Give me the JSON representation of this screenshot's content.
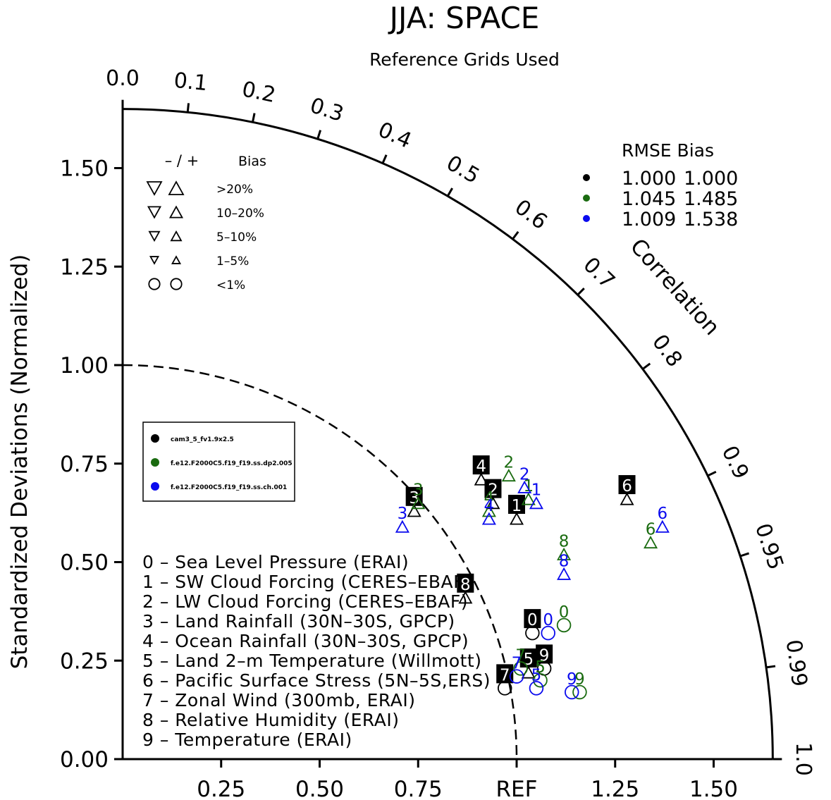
{
  "title": "JJA: SPACE",
  "subtitle": "Reference Grids Used",
  "colors": {
    "black": "#000000",
    "green": "#1a6b10",
    "blue": "#0a0aee"
  },
  "chart_data": {
    "type": "taylor",
    "ylabel": "Standardized Deviations (Normalized)",
    "y_ticks": [
      "0.00",
      "0.25",
      "0.50",
      "0.75",
      "1.00",
      "1.25",
      "1.50"
    ],
    "y_tick_values": [
      0,
      0.25,
      0.5,
      0.75,
      1.0,
      1.25,
      1.5
    ],
    "x_ticks": [
      "0.25",
      "0.50",
      "0.75",
      "REF",
      "1.25",
      "1.50"
    ],
    "x_tick_values": [
      0.25,
      0.5,
      0.75,
      1.0,
      1.25,
      1.5
    ],
    "sd_max": 1.65,
    "correlation_label": "Correlation",
    "correlation_ticks": [
      "0.0",
      "0.1",
      "0.2",
      "0.3",
      "0.4",
      "0.5",
      "0.6",
      "0.7",
      "0.8",
      "0.9",
      "0.95",
      "0.99",
      "1.0"
    ],
    "correlation_tick_values": [
      0.0,
      0.1,
      0.2,
      0.3,
      0.4,
      0.5,
      0.6,
      0.7,
      0.8,
      0.9,
      0.95,
      0.99,
      1.0
    ],
    "reference_arc_sd": 1.0,
    "bias_legend": {
      "header_signs": "– / +",
      "header": "Bias",
      "rows": [
        ">20%",
        "10–20%",
        "5–10%",
        "1–5%",
        "<1%"
      ]
    },
    "stats_legend": {
      "header": "RMSE  Bias",
      "rows": [
        {
          "color": "black",
          "rmse": "1.000",
          "bias": "1.000"
        },
        {
          "color": "green",
          "rmse": "1.045",
          "bias": "1.485"
        },
        {
          "color": "blue",
          "rmse": "1.009",
          "bias": "1.538"
        }
      ]
    },
    "series": [
      {
        "name": "cam3_5_fv1.9x2.5",
        "color": "black",
        "boxed": true,
        "points": [
          {
            "label": "0",
            "x": 1.04,
            "y": 0.32,
            "marker": "circle"
          },
          {
            "label": "1",
            "x": 1.0,
            "y": 0.61,
            "marker": "up"
          },
          {
            "label": "2",
            "x": 0.94,
            "y": 0.65,
            "marker": "up"
          },
          {
            "label": "3",
            "x": 0.74,
            "y": 0.63,
            "marker": "up"
          },
          {
            "label": "4",
            "x": 0.91,
            "y": 0.71,
            "marker": "up"
          },
          {
            "label": "5",
            "x": 1.03,
            "y": 0.22,
            "marker": "up"
          },
          {
            "label": "6",
            "x": 1.28,
            "y": 0.66,
            "marker": "up"
          },
          {
            "label": "7",
            "x": 0.97,
            "y": 0.18,
            "marker": "circle"
          },
          {
            "label": "8",
            "x": 0.87,
            "y": 0.41,
            "marker": "up"
          },
          {
            "label": "9",
            "x": 1.07,
            "y": 0.23,
            "marker": "circle"
          }
        ]
      },
      {
        "name": "f.e12.F2000C5.f19_f19.ss.dp2.005",
        "color": "green",
        "boxed": false,
        "points": [
          {
            "label": "0",
            "x": 1.12,
            "y": 0.34,
            "marker": "circle"
          },
          {
            "label": "1",
            "x": 1.03,
            "y": 0.66,
            "marker": "up"
          },
          {
            "label": "2",
            "x": 0.98,
            "y": 0.72,
            "marker": "up"
          },
          {
            "label": "3",
            "x": 0.75,
            "y": 0.65,
            "marker": "up"
          },
          {
            "label": "4",
            "x": 0.93,
            "y": 0.63,
            "marker": "up"
          },
          {
            "label": "5",
            "x": 1.06,
            "y": 0.2,
            "marker": "circle"
          },
          {
            "label": "6",
            "x": 1.34,
            "y": 0.55,
            "marker": "up"
          },
          {
            "label": "7",
            "x": 1.01,
            "y": 0.23,
            "marker": "circle"
          },
          {
            "label": "8",
            "x": 1.12,
            "y": 0.52,
            "marker": "up"
          },
          {
            "label": "9",
            "x": 1.16,
            "y": 0.17,
            "marker": "circle"
          }
        ]
      },
      {
        "name": "f.e12.F2000C5.f19_f19.ss.ch.001",
        "color": "blue",
        "boxed": false,
        "points": [
          {
            "label": "0",
            "x": 1.08,
            "y": 0.32,
            "marker": "circle"
          },
          {
            "label": "1",
            "x": 1.05,
            "y": 0.65,
            "marker": "up"
          },
          {
            "label": "2",
            "x": 1.02,
            "y": 0.69,
            "marker": "up"
          },
          {
            "label": "3",
            "x": 0.71,
            "y": 0.59,
            "marker": "up"
          },
          {
            "label": "4",
            "x": 0.93,
            "y": 0.61,
            "marker": "up"
          },
          {
            "label": "5",
            "x": 1.05,
            "y": 0.18,
            "marker": "circle"
          },
          {
            "label": "6",
            "x": 1.37,
            "y": 0.59,
            "marker": "up"
          },
          {
            "label": "7",
            "x": 1.0,
            "y": 0.21,
            "marker": "circle"
          },
          {
            "label": "8",
            "x": 1.12,
            "y": 0.47,
            "marker": "up"
          },
          {
            "label": "9",
            "x": 1.14,
            "y": 0.17,
            "marker": "circle"
          }
        ]
      }
    ],
    "case_list": [
      "0 – Sea Level Pressure (ERAI)",
      "1 – SW Cloud Forcing (CERES–EBAF)",
      "2 – LW Cloud Forcing (CERES–EBAF)",
      "3 – Land Rainfall (30N–30S, GPCP)",
      "4 – Ocean Rainfall (30N–30S, GPCP)",
      "5 – Land 2–m Temperature (Willmott)",
      "6 – Pacific Surface Stress (5N–5S,ERS)",
      "7 – Zonal Wind (300mb, ERAI)",
      "8 – Relative Humidity (ERAI)",
      "9 – Temperature (ERAI)"
    ]
  }
}
